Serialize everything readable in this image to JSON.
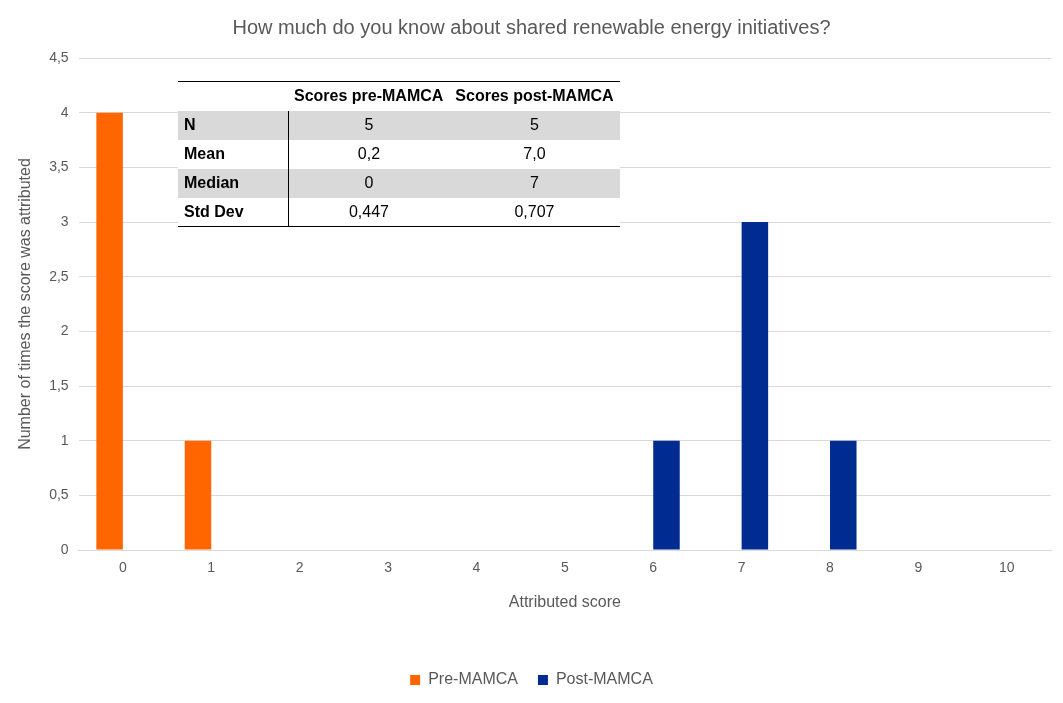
{
  "chart_data": [
    {
      "type": "bar",
      "title": "How much do you know about shared renewable energy initiatives?",
      "xlabel": "Attributed score",
      "ylabel": "Number of times the score was attributed",
      "categories": [
        "0",
        "1",
        "2",
        "3",
        "4",
        "5",
        "6",
        "7",
        "8",
        "9",
        "10"
      ],
      "series": [
        {
          "name": "Pre-MAMCA",
          "color": "#ff6600",
          "values": [
            4,
            1,
            0,
            0,
            0,
            0,
            0,
            0,
            0,
            0,
            0
          ]
        },
        {
          "name": "Post-MAMCA",
          "color": "#002b91",
          "values": [
            0,
            0,
            0,
            0,
            0,
            0,
            1,
            3,
            1,
            0,
            0
          ]
        }
      ],
      "ylim": [
        0,
        4.5
      ],
      "yticks": [
        0,
        {
          "value": 0.5,
          "label": "0,5"
        },
        1,
        {
          "value": 1.5,
          "label": "1,5"
        },
        2,
        {
          "value": 2.5,
          "label": "2,5"
        },
        3,
        {
          "value": 3.5,
          "label": "3,5"
        },
        4,
        {
          "value": 4.5,
          "label": "4,5"
        }
      ],
      "grid": "y",
      "legend": "bottom"
    },
    {
      "type": "other",
      "categories": [
        "N",
        "Mean",
        "Median",
        "Std Dev"
      ],
      "series": [
        {
          "name": "Scores pre-MAMCA",
          "colors": [
            "#d9d9d9",
            "#ffffff",
            "#d9d9d9",
            "#ffffff"
          ],
          "values": [
            5,
            0.2,
            0,
            0.447
          ],
          "value_labels": [
            "5",
            "0,2",
            "0",
            "0,447"
          ]
        },
        {
          "name": "Scores post-MAMCA",
          "colors": [
            "#d9d9d9",
            "#ffffff",
            "#d9d9d9",
            "#ffffff"
          ],
          "values": [
            5,
            7.0,
            7,
            0.707
          ],
          "value_labels": [
            "5",
            "7,0",
            "7",
            "0,707"
          ]
        }
      ]
    }
  ]
}
